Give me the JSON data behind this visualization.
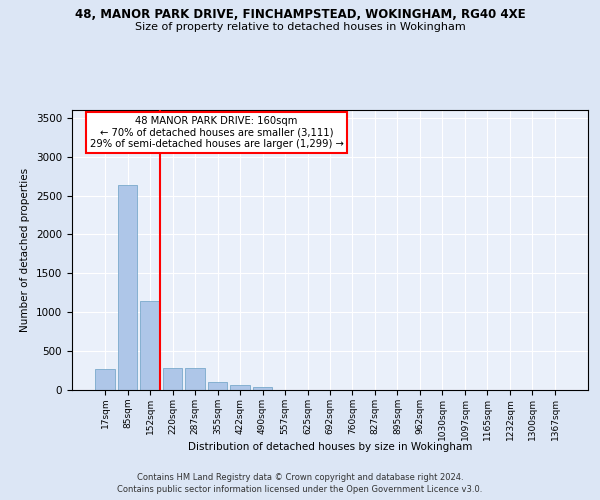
{
  "title1": "48, MANOR PARK DRIVE, FINCHAMPSTEAD, WOKINGHAM, RG40 4XE",
  "title2": "Size of property relative to detached houses in Wokingham",
  "xlabel": "Distribution of detached houses by size in Wokingham",
  "ylabel": "Number of detached properties",
  "categories": [
    "17sqm",
    "85sqm",
    "152sqm",
    "220sqm",
    "287sqm",
    "355sqm",
    "422sqm",
    "490sqm",
    "557sqm",
    "625sqm",
    "692sqm",
    "760sqm",
    "827sqm",
    "895sqm",
    "962sqm",
    "1030sqm",
    "1097sqm",
    "1165sqm",
    "1232sqm",
    "1300sqm",
    "1367sqm"
  ],
  "values": [
    270,
    2640,
    1140,
    285,
    285,
    105,
    65,
    40,
    0,
    0,
    0,
    0,
    0,
    0,
    0,
    0,
    0,
    0,
    0,
    0,
    0
  ],
  "bar_color": "#aec6e8",
  "bar_edge_color": "#7aaacc",
  "annotation_text_line1": "48 MANOR PARK DRIVE: 160sqm",
  "annotation_text_line2": "← 70% of detached houses are smaller (3,111)",
  "annotation_text_line3": "29% of semi-detached houses are larger (1,299) →",
  "ylim": [
    0,
    3600
  ],
  "yticks": [
    0,
    500,
    1000,
    1500,
    2000,
    2500,
    3000,
    3500
  ],
  "footer1": "Contains HM Land Registry data © Crown copyright and database right 2024.",
  "footer2": "Contains public sector information licensed under the Open Government Licence v3.0.",
  "bg_color": "#dce6f5",
  "plot_bg_color": "#eaf0fa"
}
